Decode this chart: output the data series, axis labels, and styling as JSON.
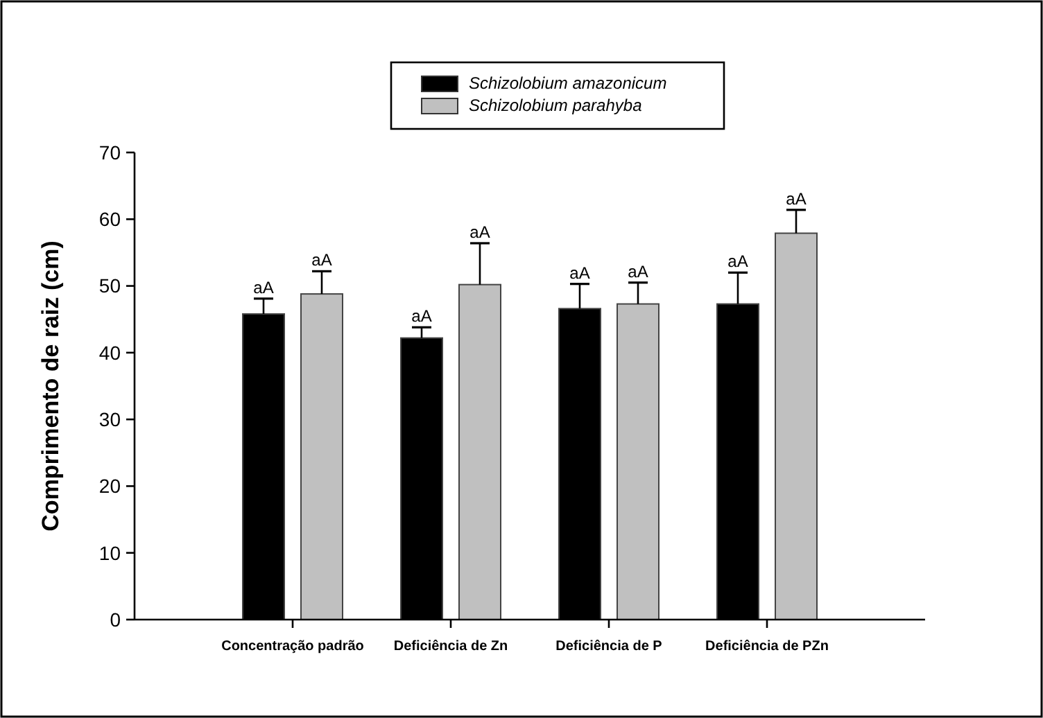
{
  "chart_data": {
    "type": "bar",
    "ylabel": "Comprimento de raiz (cm)",
    "categories": [
      "Concentração padrão",
      "Deficiência de Zn",
      "Deficiência de P",
      "Deficiência de PZn"
    ],
    "series": [
      {
        "name": "Schizolobium amazonicum",
        "color": "#000000",
        "values": [
          45.8,
          42.2,
          46.6,
          47.3
        ],
        "errors": [
          [
            45.8,
            48.1
          ],
          [
            42.2,
            43.8
          ],
          [
            46.6,
            50.3
          ],
          [
            47.3,
            52
          ]
        ],
        "value_labels": [
          "aA",
          "aA",
          "aA",
          "aA"
        ]
      },
      {
        "name": "Schizolobium parahyba",
        "color": "#c0c0c0",
        "values": [
          48.8,
          50.2,
          47.3,
          57.9
        ],
        "errors": [
          [
            48.8,
            52.2
          ],
          [
            50.2,
            56.4
          ],
          [
            47.3,
            50.5
          ],
          [
            57.9,
            61.4
          ]
        ],
        "value_labels": [
          "aA",
          "aA",
          "aA",
          "aA"
        ]
      }
    ],
    "ylim": [
      0,
      70
    ],
    "yticks": [
      0,
      10,
      20,
      30,
      40,
      50,
      60,
      70
    ],
    "grid": false,
    "legend": "top"
  }
}
